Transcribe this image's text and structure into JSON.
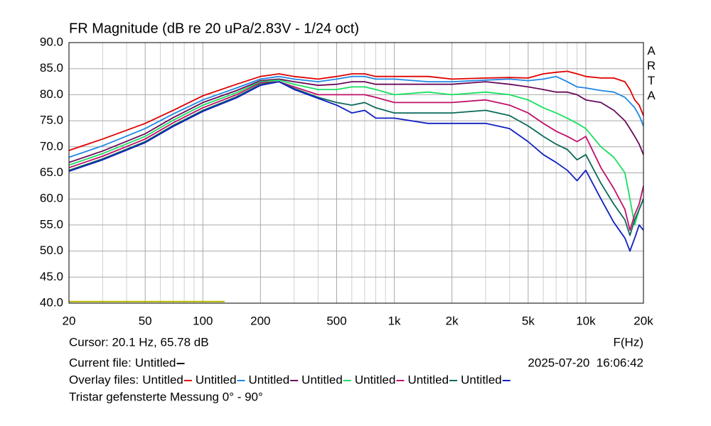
{
  "chart_data": {
    "type": "line",
    "title": "FR Magnitude (dB re 20 uPa/2.83V - 1/24 oct)",
    "brand": "ARTA",
    "x_label": "F(Hz)",
    "xscale": "log",
    "grid": true,
    "xlim": [
      20,
      20000
    ],
    "ylim": [
      40,
      90
    ],
    "xticks": [
      20,
      50,
      100,
      200,
      500,
      {
        "value": 1000,
        "label": "1k"
      },
      {
        "value": 2000,
        "label": "2k"
      },
      {
        "value": 5000,
        "label": "5k"
      },
      {
        "value": 10000,
        "label": "10k"
      },
      {
        "value": 20000,
        "label": "20k"
      }
    ],
    "xgrid_minor": [
      30,
      40,
      60,
      70,
      80,
      90,
      300,
      400,
      600,
      700,
      800,
      900,
      3000,
      4000,
      6000,
      7000,
      8000,
      9000
    ],
    "yticks": [
      {
        "value": 40,
        "label": "40.0"
      },
      {
        "value": 45,
        "label": "45.0"
      },
      {
        "value": 50,
        "label": "50.0"
      },
      {
        "value": 55,
        "label": "55.0"
      },
      {
        "value": 60,
        "label": "60.0"
      },
      {
        "value": 65,
        "label": "65.0"
      },
      {
        "value": 70,
        "label": "70.0"
      },
      {
        "value": 75,
        "label": "75.0"
      },
      {
        "value": 80,
        "label": "80.0"
      },
      {
        "value": 85,
        "label": "85.0"
      },
      {
        "value": 90,
        "label": "90.0"
      }
    ],
    "x": [
      20,
      30,
      50,
      70,
      100,
      150,
      200,
      250,
      300,
      400,
      500,
      600,
      700,
      800,
      1000,
      1500,
      2000,
      3000,
      4000,
      5000,
      6000,
      7000,
      8000,
      9000,
      10000,
      12000,
      14000,
      16000,
      17000,
      18000,
      19000,
      20000
    ],
    "series": [
      {
        "name": "Untitled",
        "color": "#e00000",
        "values": [
          69.3,
          71.5,
          74.5,
          77,
          79.8,
          82,
          83.5,
          84,
          83.5,
          83,
          83.5,
          84,
          84,
          83.5,
          83.5,
          83.5,
          83,
          83.2,
          83.3,
          83.2,
          84,
          84.3,
          84.5,
          84,
          83.5,
          83.2,
          83.2,
          82.5,
          81,
          79,
          78,
          76
        ]
      },
      {
        "name": "Untitled",
        "color": "#1e88e5",
        "values": [
          68,
          70.2,
          73.5,
          76.3,
          79,
          81.3,
          83,
          83.5,
          83,
          82.5,
          83,
          83.5,
          83.5,
          83,
          83,
          82.5,
          82.5,
          82.8,
          83,
          82.7,
          83,
          83.5,
          82.5,
          81.5,
          81.3,
          80.8,
          80.5,
          79.5,
          78.5,
          77.5,
          76,
          74
        ]
      },
      {
        "name": "Untitled",
        "color": "#6a0a5a",
        "values": [
          67,
          69.2,
          72.5,
          75.6,
          78.5,
          80.8,
          82.7,
          83,
          82.5,
          81.8,
          82,
          82.5,
          82.5,
          82,
          82,
          82,
          82,
          82.5,
          82,
          81.5,
          81,
          80.5,
          80.5,
          80,
          79,
          78.5,
          77,
          75,
          73.5,
          72,
          70.5,
          68.5
        ]
      },
      {
        "name": "Untitled",
        "color": "#18e060",
        "values": [
          66.5,
          68.7,
          72,
          75.1,
          78,
          80.4,
          82.5,
          82.8,
          82,
          81,
          81,
          81.5,
          81.5,
          81,
          80,
          80.5,
          80,
          80.5,
          80,
          79,
          77.5,
          76.5,
          75.5,
          74.5,
          73.5,
          70,
          68,
          65,
          60,
          55,
          58,
          60
        ]
      },
      {
        "name": "Untitled",
        "color": "#c0106a",
        "values": [
          66,
          68.2,
          71.5,
          74.6,
          77.5,
          80,
          82.3,
          82.5,
          81.5,
          80,
          80,
          80,
          80,
          79.5,
          78.5,
          78.5,
          78.5,
          79,
          78,
          76.5,
          74.5,
          73,
          72,
          71,
          72,
          66,
          62,
          58,
          54,
          57,
          59,
          62.5
        ]
      },
      {
        "name": "Untitled",
        "color": "#0a6a5a",
        "values": [
          65.5,
          67.7,
          71,
          74.1,
          77,
          79.6,
          82,
          82.5,
          81.2,
          79.5,
          78.5,
          78,
          78.5,
          77.5,
          76.5,
          76.5,
          76.5,
          77,
          76,
          74,
          72,
          70.5,
          69.5,
          67.5,
          68.5,
          63,
          59,
          56,
          53,
          56,
          58,
          60
        ]
      },
      {
        "name": "Untitled",
        "color": "#1020c0",
        "values": [
          65.3,
          67.5,
          70.8,
          73.9,
          76.8,
          79.4,
          81.8,
          82.5,
          81,
          79.3,
          78,
          76.5,
          77,
          75.5,
          75.5,
          74.5,
          74.5,
          74.5,
          73.5,
          71,
          68.5,
          67,
          65.5,
          63.5,
          65.5,
          60,
          55.5,
          52.5,
          50,
          52.5,
          55,
          54
        ]
      }
    ],
    "current_trace": {
      "color": "#b4b400",
      "x": [
        20,
        130
      ],
      "values": [
        40.3,
        40.3
      ]
    },
    "cursor": "Cursor: 20.1 Hz, 65.78 dB",
    "current_file": {
      "label": "Current file:",
      "name": "Untitled",
      "color": "#000000"
    },
    "overlay_label": "Overlay files:",
    "timestamp": "2025-07-20  16:06:42",
    "note": "Tristar gefensterte Messung 0° - 90°"
  }
}
